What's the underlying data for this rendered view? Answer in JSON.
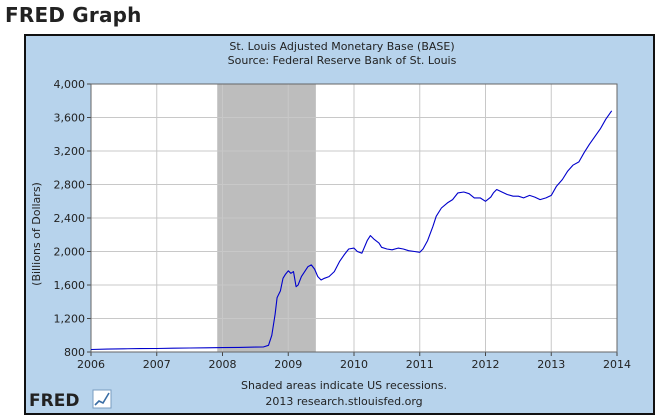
{
  "header": {
    "title": "FRED Graph"
  },
  "footer": {
    "note": "Shaded areas indicate US recessions.",
    "source": "2013 research.stlouisfed.org",
    "logo_text": "FRED"
  },
  "colors": {
    "line": "#0000cc",
    "recession": "#bdbdbd",
    "frame_bg": "#b7d3ec",
    "plot_bg": "#ffffff"
  },
  "chart_data": {
    "type": "line",
    "title": "St. Louis Adjusted Monetary Base (BASE)",
    "subtitle": "Source: Federal Reserve Bank of St. Louis",
    "ylabel": "(Billions of Dollars)",
    "xlabel": "",
    "xlim": [
      2006,
      2014
    ],
    "ylim": [
      800,
      4000
    ],
    "x_ticks": [
      "2006",
      "2007",
      "2008",
      "2009",
      "2010",
      "2011",
      "2012",
      "2013",
      "2014"
    ],
    "y_ticks": [
      "800",
      "1,200",
      "1,600",
      "2,000",
      "2,400",
      "2,800",
      "3,200",
      "3,600",
      "4,000"
    ],
    "grid": true,
    "recession": {
      "start": 2007.92,
      "end": 2009.42
    },
    "series": [
      {
        "points": [
          [
            2006.0,
            830
          ],
          [
            2006.25,
            835
          ],
          [
            2006.5,
            838
          ],
          [
            2006.75,
            840
          ],
          [
            2007.0,
            842
          ],
          [
            2007.25,
            845
          ],
          [
            2007.5,
            848
          ],
          [
            2007.75,
            850
          ],
          [
            2008.0,
            852
          ],
          [
            2008.25,
            855
          ],
          [
            2008.5,
            858
          ],
          [
            2008.62,
            860
          ],
          [
            2008.7,
            880
          ],
          [
            2008.75,
            1000
          ],
          [
            2008.8,
            1250
          ],
          [
            2008.83,
            1450
          ],
          [
            2008.88,
            1530
          ],
          [
            2008.92,
            1680
          ],
          [
            2008.96,
            1730
          ],
          [
            2009.0,
            1770
          ],
          [
            2009.04,
            1740
          ],
          [
            2009.08,
            1760
          ],
          [
            2009.12,
            1580
          ],
          [
            2009.15,
            1600
          ],
          [
            2009.2,
            1700
          ],
          [
            2009.25,
            1760
          ],
          [
            2009.3,
            1820
          ],
          [
            2009.35,
            1840
          ],
          [
            2009.4,
            1790
          ],
          [
            2009.45,
            1700
          ],
          [
            2009.5,
            1660
          ],
          [
            2009.55,
            1680
          ],
          [
            2009.62,
            1700
          ],
          [
            2009.7,
            1760
          ],
          [
            2009.78,
            1880
          ],
          [
            2009.85,
            1960
          ],
          [
            2009.92,
            2030
          ],
          [
            2010.0,
            2040
          ],
          [
            2010.05,
            2000
          ],
          [
            2010.12,
            1980
          ],
          [
            2010.2,
            2130
          ],
          [
            2010.25,
            2190
          ],
          [
            2010.3,
            2150
          ],
          [
            2010.38,
            2100
          ],
          [
            2010.42,
            2050
          ],
          [
            2010.5,
            2030
          ],
          [
            2010.58,
            2020
          ],
          [
            2010.67,
            2040
          ],
          [
            2010.75,
            2030
          ],
          [
            2010.83,
            2010
          ],
          [
            2010.92,
            2000
          ],
          [
            2011.0,
            1990
          ],
          [
            2011.05,
            2030
          ],
          [
            2011.12,
            2130
          ],
          [
            2011.2,
            2300
          ],
          [
            2011.25,
            2420
          ],
          [
            2011.33,
            2520
          ],
          [
            2011.42,
            2580
          ],
          [
            2011.5,
            2620
          ],
          [
            2011.58,
            2700
          ],
          [
            2011.67,
            2710
          ],
          [
            2011.75,
            2690
          ],
          [
            2011.83,
            2640
          ],
          [
            2011.92,
            2640
          ],
          [
            2012.0,
            2600
          ],
          [
            2012.08,
            2650
          ],
          [
            2012.12,
            2700
          ],
          [
            2012.17,
            2740
          ],
          [
            2012.25,
            2710
          ],
          [
            2012.33,
            2680
          ],
          [
            2012.42,
            2660
          ],
          [
            2012.5,
            2660
          ],
          [
            2012.58,
            2640
          ],
          [
            2012.67,
            2670
          ],
          [
            2012.75,
            2650
          ],
          [
            2012.83,
            2620
          ],
          [
            2012.92,
            2640
          ],
          [
            2013.0,
            2670
          ],
          [
            2013.08,
            2780
          ],
          [
            2013.17,
            2860
          ],
          [
            2013.25,
            2960
          ],
          [
            2013.33,
            3030
          ],
          [
            2013.42,
            3070
          ],
          [
            2013.5,
            3180
          ],
          [
            2013.58,
            3280
          ],
          [
            2013.67,
            3380
          ],
          [
            2013.75,
            3470
          ],
          [
            2013.83,
            3580
          ],
          [
            2013.92,
            3680
          ]
        ]
      }
    ]
  }
}
